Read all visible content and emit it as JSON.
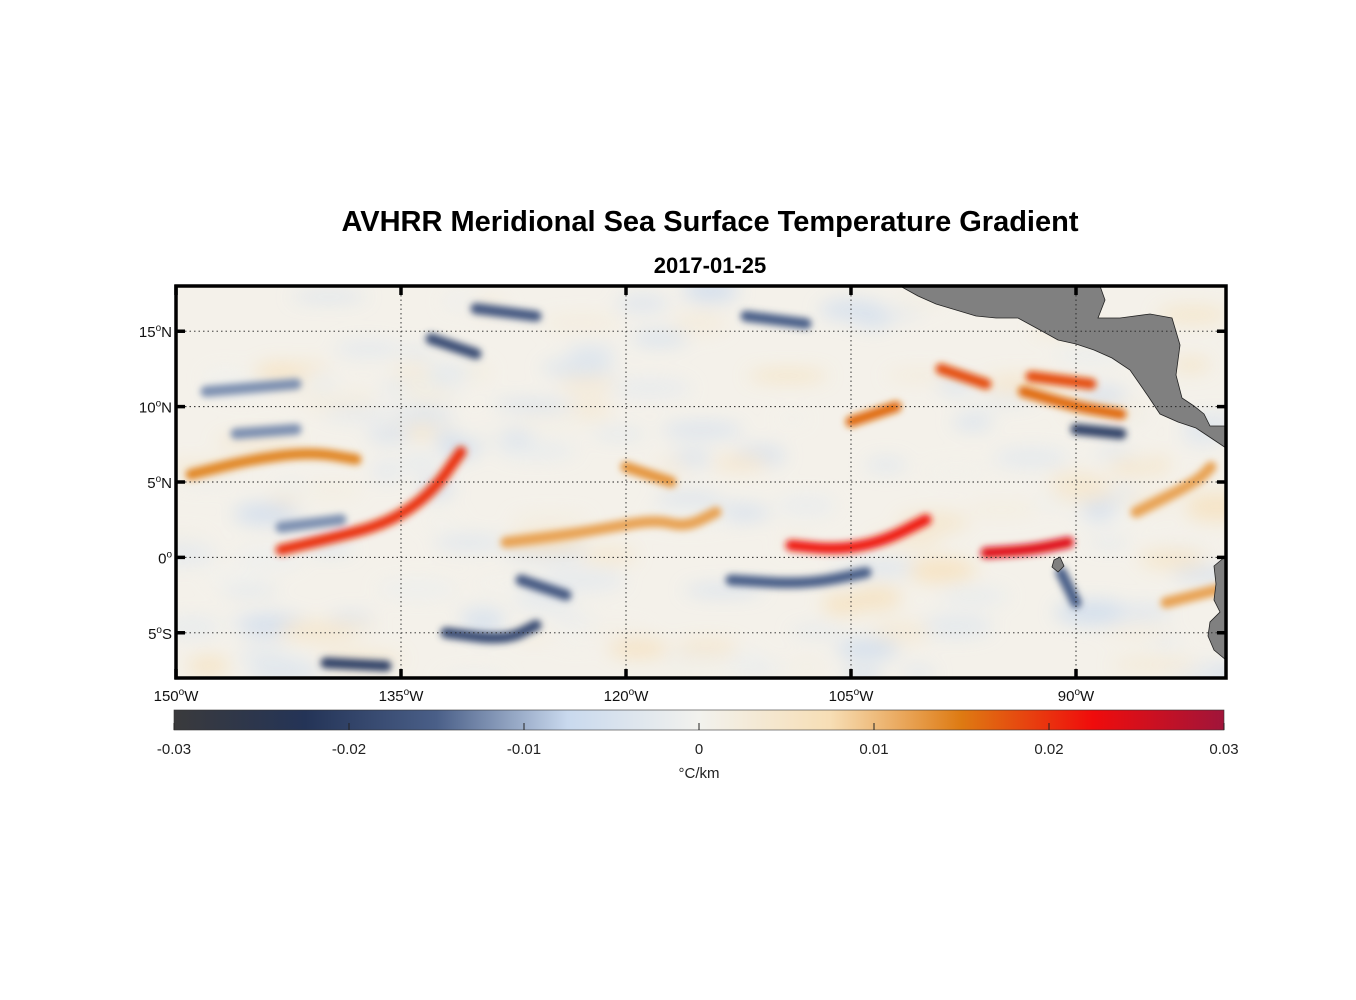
{
  "title": "AVHRR Meridional Sea Surface Temperature Gradient",
  "subtitle": "2017-01-25",
  "map": {
    "lon_range": [
      -150,
      -80
    ],
    "lat_range": [
      -8,
      18
    ],
    "lon_ticks": [
      {
        "value": -150,
        "num": "150",
        "hemi": "W"
      },
      {
        "value": -135,
        "num": "135",
        "hemi": "W"
      },
      {
        "value": -120,
        "num": "120",
        "hemi": "W"
      },
      {
        "value": -105,
        "num": "105",
        "hemi": "W"
      },
      {
        "value": -90,
        "num": "90",
        "hemi": "W"
      }
    ],
    "lat_ticks": [
      {
        "value": 15,
        "num": "15",
        "hemi": "N"
      },
      {
        "value": 10,
        "num": "10",
        "hemi": "N"
      },
      {
        "value": 5,
        "num": "5",
        "hemi": "N"
      },
      {
        "value": 0,
        "num": "0",
        "hemi": ""
      },
      {
        "value": -5,
        "num": "5",
        "hemi": "S"
      }
    ],
    "degree_symbol": "o",
    "grid": true,
    "grid_style": "dotted",
    "land_color": "#808080",
    "ocean_color": "#f4f1ea"
  },
  "colorbar": {
    "range": [
      -0.03,
      0.03
    ],
    "ticks": [
      {
        "value": -0.03,
        "label": "-0.03"
      },
      {
        "value": -0.02,
        "label": "-0.02"
      },
      {
        "value": -0.01,
        "label": "-0.01"
      },
      {
        "value": 0,
        "label": "0"
      },
      {
        "value": 0.01,
        "label": "0.01"
      },
      {
        "value": 0.02,
        "label": "0.02"
      },
      {
        "value": 0.03,
        "label": "0.03"
      }
    ],
    "unit": "°C/km",
    "colors": [
      "#3a3a3c",
      "#243457",
      "#4a5f88",
      "#c9d9ee",
      "#f2f2ee",
      "#f7deb5",
      "#de7a12",
      "#f00c0c",
      "#a0153a"
    ]
  },
  "features": {
    "warm_bands": [
      {
        "value": 0.014,
        "path": [
          [
            -149,
            5.5
          ],
          [
            -145,
            6.5
          ],
          [
            -141,
            7
          ],
          [
            -138,
            6.5
          ]
        ]
      },
      {
        "value": 0.02,
        "path": [
          [
            -143,
            0.5
          ],
          [
            -140,
            1.2
          ],
          [
            -136,
            2.2
          ],
          [
            -133,
            4.2
          ],
          [
            -131,
            7
          ]
        ]
      },
      {
        "value": 0.012,
        "path": [
          [
            -128,
            1
          ],
          [
            -124,
            1.5
          ],
          [
            -121,
            2
          ],
          [
            -118,
            2.5
          ],
          [
            -116,
            2
          ],
          [
            -114,
            3
          ]
        ]
      },
      {
        "value": 0.022,
        "path": [
          [
            -109,
            0.8
          ],
          [
            -106,
            0.5
          ],
          [
            -103,
            1
          ],
          [
            -100,
            2.5
          ]
        ]
      },
      {
        "value": 0.013,
        "path": [
          [
            -120,
            6
          ],
          [
            -117,
            5
          ]
        ]
      },
      {
        "value": 0.016,
        "path": [
          [
            -105,
            9
          ],
          [
            -102,
            10
          ]
        ]
      },
      {
        "value": 0.024,
        "path": [
          [
            -96,
            0.3
          ],
          [
            -93,
            0.5
          ],
          [
            -90.5,
            1
          ]
        ]
      },
      {
        "value": 0.018,
        "path": [
          [
            -93,
            12
          ],
          [
            -89,
            11.5
          ]
        ]
      },
      {
        "value": 0.016,
        "path": [
          [
            -93.5,
            11
          ],
          [
            -90,
            10
          ],
          [
            -87,
            9.5
          ]
        ]
      },
      {
        "value": 0.018,
        "path": [
          [
            -99,
            12.5
          ],
          [
            -96,
            11.5
          ]
        ]
      },
      {
        "value": 0.012,
        "path": [
          [
            -86,
            3
          ],
          [
            -82,
            5
          ],
          [
            -81,
            6
          ]
        ]
      },
      {
        "value": 0.012,
        "path": [
          [
            -84,
            -3
          ],
          [
            -80,
            -2
          ]
        ]
      }
    ],
    "cold_bands": [
      {
        "value": -0.015,
        "path": [
          [
            -113,
            -1.5
          ],
          [
            -108,
            -1.8
          ],
          [
            -104,
            -1
          ]
        ]
      },
      {
        "value": -0.018,
        "path": [
          [
            -132,
            -5
          ],
          [
            -128,
            -5.5
          ],
          [
            -126,
            -4.5
          ]
        ]
      },
      {
        "value": -0.02,
        "path": [
          [
            -140,
            -7
          ],
          [
            -136,
            -7.2
          ]
        ]
      },
      {
        "value": -0.016,
        "path": [
          [
            -127,
            -1.5
          ],
          [
            -124,
            -2.5
          ]
        ]
      },
      {
        "value": -0.012,
        "path": [
          [
            -148,
            11
          ],
          [
            -142,
            11.5
          ]
        ]
      },
      {
        "value": -0.012,
        "path": [
          [
            -146,
            8.2
          ],
          [
            -142,
            8.5
          ]
        ]
      },
      {
        "value": -0.016,
        "path": [
          [
            -130,
            16.5
          ],
          [
            -126,
            16
          ]
        ]
      },
      {
        "value": -0.018,
        "path": [
          [
            -133,
            14.5
          ],
          [
            -130,
            13.5
          ]
        ]
      },
      {
        "value": -0.015,
        "path": [
          [
            -112,
            16
          ],
          [
            -108,
            15.5
          ]
        ]
      },
      {
        "value": -0.02,
        "path": [
          [
            -90,
            8.5
          ],
          [
            -87,
            8.2
          ]
        ]
      },
      {
        "value": -0.015,
        "path": [
          [
            -91,
            -1
          ],
          [
            -90,
            -3
          ]
        ]
      },
      {
        "value": -0.012,
        "path": [
          [
            -143,
            2
          ],
          [
            -139,
            2.5
          ]
        ]
      }
    ]
  }
}
